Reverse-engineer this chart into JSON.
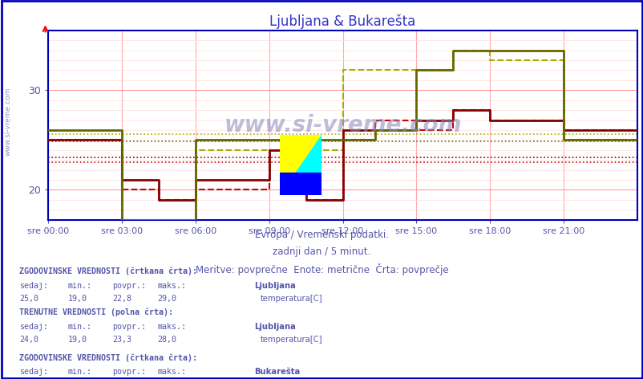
{
  "title": "Ljubljana & Bukarеšta",
  "background_color": "#ffffff",
  "plot_bg_color": "#ffffff",
  "border_color": "#0000bb",
  "title_color": "#3333cc",
  "text_color": "#5555aa",
  "watermark": "www.si-vreme.com",
  "xlabel_line1": "Evropa / Vremenski podatki.",
  "xlabel_line2": "zadnji dan / 5 minut.",
  "xlabel_line3": "Meritve: povprečne  Enote: metrične  Črta: povprečje",
  "ylim": [
    17,
    36
  ],
  "yticks": [
    20,
    30
  ],
  "xlim": [
    0,
    288
  ],
  "xtick_positions": [
    0,
    36,
    72,
    108,
    144,
    180,
    216,
    252
  ],
  "xtick_labels": [
    "sre 00:00",
    "sre 03:00",
    "sre 06:00",
    "sre 09:00",
    "sre 12:00",
    "sre 15:00",
    "sre 18:00",
    "sre 21:00"
  ],
  "lj_hist_color": "#cc0000",
  "lj_curr_color": "#880000",
  "buk_hist_color": "#aaaa00",
  "buk_curr_color": "#666600",
  "lj_hist_avg": 22.8,
  "lj_curr_avg": 23.3,
  "buk_hist_avg": 25.6,
  "buk_curr_avg": 24.9,
  "lj_hist_data": [
    [
      0,
      25
    ],
    [
      36,
      25
    ],
    [
      36,
      20
    ],
    [
      54,
      20
    ],
    [
      54,
      19
    ],
    [
      72,
      19
    ],
    [
      72,
      20
    ],
    [
      108,
      20
    ],
    [
      108,
      24
    ],
    [
      126,
      24
    ],
    [
      126,
      19
    ],
    [
      144,
      19
    ],
    [
      144,
      25
    ],
    [
      160,
      25
    ],
    [
      160,
      27
    ],
    [
      180,
      27
    ],
    [
      180,
      26
    ],
    [
      198,
      26
    ],
    [
      198,
      28
    ],
    [
      216,
      28
    ],
    [
      216,
      27
    ],
    [
      252,
      27
    ],
    [
      252,
      26
    ],
    [
      288,
      26
    ]
  ],
  "lj_curr_data": [
    [
      0,
      25
    ],
    [
      36,
      25
    ],
    [
      36,
      21
    ],
    [
      54,
      21
    ],
    [
      54,
      19
    ],
    [
      72,
      19
    ],
    [
      72,
      21
    ],
    [
      108,
      21
    ],
    [
      108,
      24
    ],
    [
      126,
      24
    ],
    [
      126,
      19
    ],
    [
      144,
      19
    ],
    [
      144,
      26
    ],
    [
      160,
      26
    ],
    [
      160,
      26
    ],
    [
      180,
      26
    ],
    [
      180,
      27
    ],
    [
      198,
      27
    ],
    [
      198,
      28
    ],
    [
      216,
      28
    ],
    [
      216,
      27
    ],
    [
      252,
      27
    ],
    [
      252,
      26
    ],
    [
      288,
      26
    ]
  ],
  "buk_hist_data": [
    [
      0,
      25
    ],
    [
      36,
      25
    ],
    [
      36,
      17
    ],
    [
      72,
      17
    ],
    [
      72,
      24
    ],
    [
      108,
      24
    ],
    [
      108,
      24
    ],
    [
      126,
      24
    ],
    [
      126,
      24
    ],
    [
      144,
      24
    ],
    [
      144,
      32
    ],
    [
      160,
      32
    ],
    [
      160,
      32
    ],
    [
      180,
      32
    ],
    [
      180,
      32
    ],
    [
      198,
      32
    ],
    [
      198,
      34
    ],
    [
      216,
      34
    ],
    [
      216,
      33
    ],
    [
      252,
      33
    ],
    [
      252,
      25
    ],
    [
      288,
      25
    ]
  ],
  "buk_curr_data": [
    [
      0,
      26
    ],
    [
      36,
      26
    ],
    [
      36,
      17
    ],
    [
      72,
      17
    ],
    [
      72,
      25
    ],
    [
      108,
      25
    ],
    [
      108,
      25
    ],
    [
      126,
      25
    ],
    [
      126,
      25
    ],
    [
      144,
      25
    ],
    [
      144,
      25
    ],
    [
      160,
      25
    ],
    [
      160,
      26
    ],
    [
      180,
      26
    ],
    [
      180,
      32
    ],
    [
      198,
      32
    ],
    [
      198,
      34
    ],
    [
      216,
      34
    ],
    [
      216,
      34
    ],
    [
      252,
      34
    ],
    [
      252,
      25
    ],
    [
      288,
      25
    ]
  ]
}
